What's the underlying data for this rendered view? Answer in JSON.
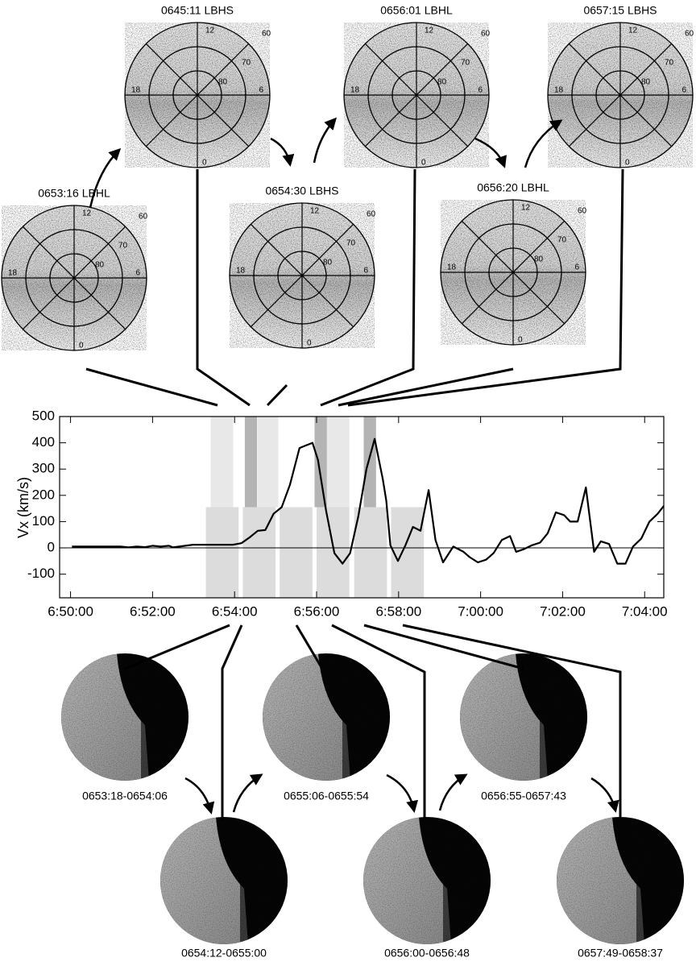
{
  "chart_data": {
    "type": "line",
    "y_label": "Vx (km/s)",
    "color": "#000000",
    "x": [
      "6:50:02",
      "6:51:13",
      "6:51:25",
      "6:51:37",
      "6:51:49",
      "6:52:00",
      "6:52:12",
      "6:52:24",
      "6:52:30",
      "6:52:48",
      "6:52:59",
      "6:53:58",
      "6:54:10",
      "6:54:22",
      "6:54:34",
      "6:54:45",
      "6:54:57",
      "6:55:09",
      "6:55:21",
      "6:55:35",
      "6:55:54",
      "6:56:02",
      "6:56:14",
      "6:56:26",
      "6:56:38",
      "6:56:49",
      "6:57:01",
      "6:57:13",
      "6:57:25",
      "6:57:37",
      "6:57:42",
      "6:57:48",
      "6:57:59",
      "6:58:10",
      "6:58:21",
      "6:58:32",
      "6:58:44",
      "6:58:54",
      "6:59:05",
      "6:59:20",
      "6:59:35",
      "6:59:44",
      "6:59:56",
      "7:00:08",
      "7:00:19",
      "7:00:31",
      "7:00:43",
      "7:00:52",
      "7:01:03",
      "7:01:15",
      "7:01:27",
      "7:01:38",
      "7:01:50",
      "7:02:02",
      "7:02:11",
      "7:02:22",
      "7:02:34",
      "7:02:46",
      "7:02:56",
      "7:03:08",
      "7:03:20",
      "7:03:32",
      "7:03:43",
      "7:03:55",
      "7:04:07",
      "7:04:19",
      "7:04:28"
    ],
    "values": [
      5,
      5,
      2,
      5,
      3,
      8,
      5,
      8,
      2,
      8,
      12,
      12,
      18,
      40,
      65,
      68,
      130,
      155,
      240,
      380,
      400,
      335,
      140,
      -20,
      -60,
      -20,
      120,
      300,
      415,
      260,
      180,
      10,
      -50,
      10,
      80,
      65,
      220,
      30,
      -55,
      5,
      -15,
      -35,
      -55,
      -45,
      -20,
      30,
      45,
      -15,
      -5,
      10,
      20,
      55,
      135,
      125,
      100,
      100,
      230,
      -15,
      25,
      15,
      -60,
      -60,
      5,
      35,
      100,
      130,
      160
    ],
    "xlim": [
      "6:49:44",
      "7:04:28"
    ],
    "xticks": [
      "6:50:00",
      "6:52:00",
      "6:54:00",
      "6:56:00",
      "6:58:00",
      "7:00:00",
      "7:02:00",
      "7:04:00"
    ],
    "ylim": [
      -190,
      500
    ],
    "yticks": [
      -100,
      0,
      100,
      200,
      300,
      400,
      500
    ],
    "shaded_intervals": [
      {
        "start": "6:53:18",
        "end": "6:54:06",
        "y": [
          -190,
          155
        ],
        "color": "#dcdcdc"
      },
      {
        "start": "6:54:12",
        "end": "6:55:00",
        "y": [
          -190,
          155
        ],
        "color": "#dcdcdc"
      },
      {
        "start": "6:55:06",
        "end": "6:55:54",
        "y": [
          -190,
          155
        ],
        "color": "#dcdcdc"
      },
      {
        "start": "6:56:00",
        "end": "6:56:48",
        "y": [
          -190,
          155
        ],
        "color": "#dcdcdc"
      },
      {
        "start": "6:56:55",
        "end": "6:57:43",
        "y": [
          -190,
          155
        ],
        "color": "#dcdcdc"
      },
      {
        "start": "6:57:49",
        "end": "6:58:37",
        "y": [
          -190,
          155
        ],
        "color": "#dcdcdc"
      },
      {
        "start": "6:53:25",
        "end": "6:53:58",
        "y": [
          155,
          500
        ],
        "color": "#e8e8e8"
      },
      {
        "start": "6:54:34",
        "end": "6:55:04",
        "y": [
          155,
          500
        ],
        "color": "#e8e8e8"
      },
      {
        "start": "6:56:15",
        "end": "6:56:48",
        "y": [
          155,
          500
        ],
        "color": "#e8e8e8"
      },
      {
        "start": "6:54:15",
        "end": "6:54:33",
        "y": [
          155,
          500
        ],
        "color": "#b4b4b4"
      },
      {
        "start": "6:55:57",
        "end": "6:56:15",
        "y": [
          155,
          500
        ],
        "color": "#b4b4b4"
      },
      {
        "start": "6:57:09",
        "end": "6:57:27",
        "y": [
          155,
          500
        ],
        "color": "#b4b4b4"
      }
    ]
  },
  "polar_images": [
    {
      "title": "0653:16 LBHL",
      "labels": [
        "12",
        "60",
        "70",
        "80",
        "18",
        "6",
        "0"
      ]
    },
    {
      "title": "0645:11 LBHS",
      "labels": [
        "12",
        "60",
        "70",
        "80",
        "18",
        "6",
        "0"
      ]
    },
    {
      "title": "0654:30 LBHS",
      "labels": [
        "12",
        "60",
        "70",
        "80",
        "18",
        "6",
        "0"
      ]
    },
    {
      "title": "0656:01 LBHL",
      "labels": [
        "12",
        "60",
        "70",
        "80",
        "18",
        "6",
        "0"
      ]
    },
    {
      "title": "0656:20 LBHL",
      "labels": [
        "12",
        "60",
        "70",
        "80",
        "18",
        "6",
        "0"
      ]
    },
    {
      "title": "0657:15 LBHS",
      "labels": [
        "12",
        "60",
        "70",
        "80",
        "18",
        "6",
        "0"
      ]
    }
  ],
  "camera_images": [
    {
      "label": "0653:18-0654:06"
    },
    {
      "label": "0654:12-0655:00"
    },
    {
      "label": "0655:06-0655:54"
    },
    {
      "label": "0656:00-0656:48"
    },
    {
      "label": "0656:55-0657:43"
    },
    {
      "label": "0657:49-0658:37"
    }
  ]
}
